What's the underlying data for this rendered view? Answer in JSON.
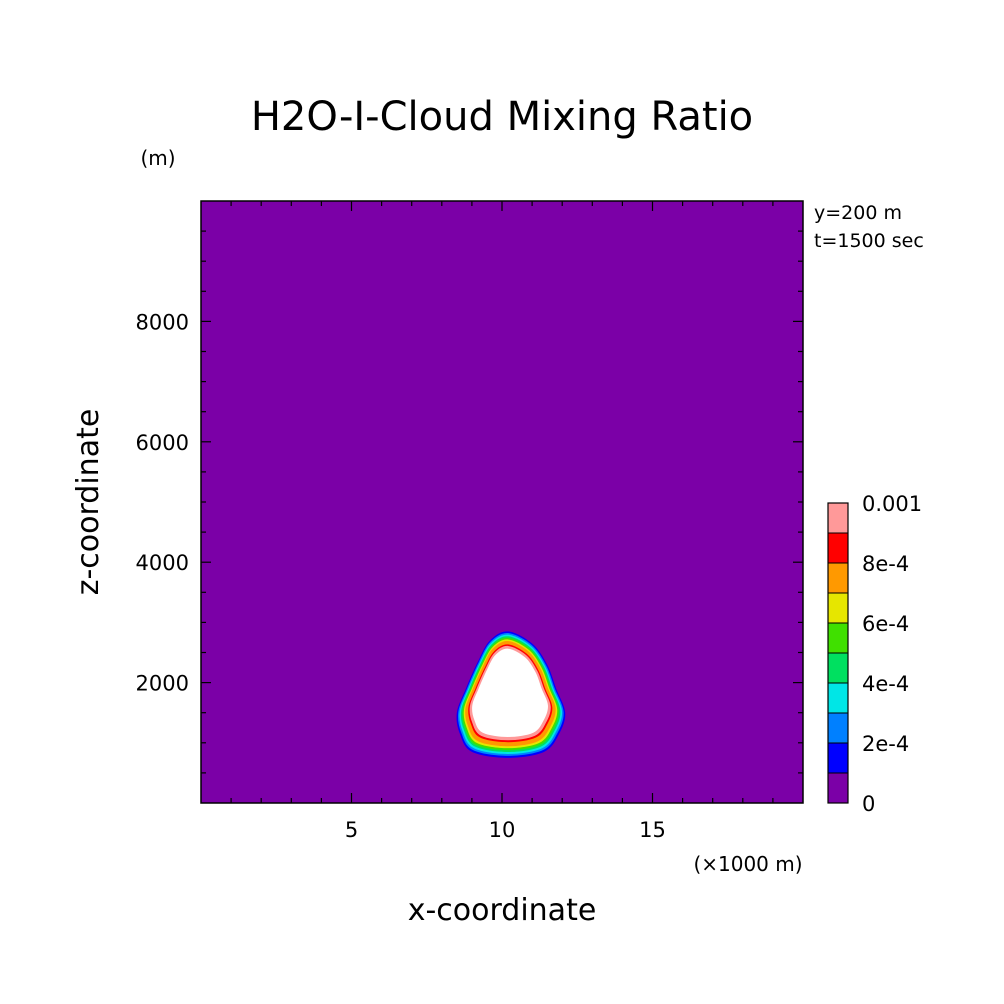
{
  "chart_data": {
    "type": "heatmap",
    "title": "H2O-I-Cloud Mixing Ratio",
    "xlabel": "x-coordinate",
    "ylabel": "z-coordinate",
    "x_unit_note": "(×1000 m)",
    "y_unit_note": "(m)",
    "xlim": [
      0,
      20
    ],
    "ylim": [
      0,
      10000
    ],
    "x_ticks": [
      5,
      10,
      15
    ],
    "x_tick_labels": [
      "5",
      "10",
      "15"
    ],
    "y_ticks": [
      2000,
      4000,
      6000,
      8000
    ],
    "y_tick_labels": [
      "2000",
      "4000",
      "6000",
      "8000"
    ],
    "annotations": [
      "y=200 m",
      "t=1500 sec"
    ],
    "colorbar": {
      "levels": [
        0,
        0.0001,
        0.0002,
        0.0003,
        0.0004,
        0.0005,
        0.0006,
        0.0007,
        0.0008,
        0.0009,
        0.001
      ],
      "colors": [
        "#7b00a7",
        "#0000ff",
        "#0080ff",
        "#00e6e6",
        "#00e060",
        "#40e000",
        "#e6e600",
        "#ff9900",
        "#ff0000",
        "#ff9999"
      ],
      "tick_labels": [
        "0",
        "2e-4",
        "4e-4",
        "6e-4",
        "8e-4",
        "0.001"
      ],
      "above_max_color": "#ffffff"
    },
    "background_value": 0,
    "cloud": {
      "center_x": 10.2,
      "center_z": 1900,
      "outer_contour": [
        [
          10.2,
          2850
        ],
        [
          11.0,
          2650
        ],
        [
          11.5,
          2300
        ],
        [
          11.8,
          1900
        ],
        [
          12.1,
          1500
        ],
        [
          11.9,
          1150
        ],
        [
          11.4,
          850
        ],
        [
          10.2,
          750
        ],
        [
          9.0,
          850
        ],
        [
          8.6,
          1150
        ],
        [
          8.5,
          1500
        ],
        [
          8.8,
          1900
        ],
        [
          9.2,
          2350
        ],
        [
          9.6,
          2700
        ]
      ],
      "max_value_region": "above 0.001 (white core)"
    }
  }
}
